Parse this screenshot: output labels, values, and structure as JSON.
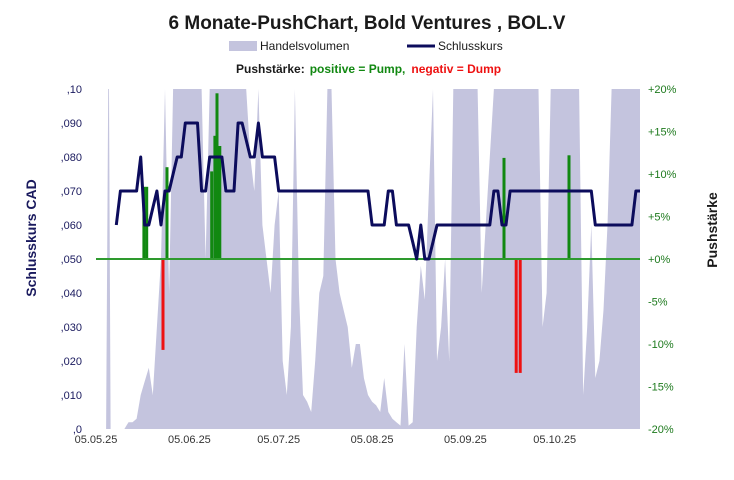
{
  "chart_data": {
    "type": "line",
    "title": "6 Monate-PushChart,  Bold Ventures , BOL.V",
    "legend": {
      "volume_label": "Handelsvolumen",
      "price_label": "Schlusskurs",
      "placement": "top"
    },
    "subtitle": {
      "prefix": "Pushstärke:",
      "positive": "positive = Pump,",
      "negative": "negativ = Dump"
    },
    "ylabel_left": "Schlusskurs CAD",
    "ylabel_right": "Pushstärke",
    "ylim_left": [
      0,
      0.1
    ],
    "yticks_left": [
      ",0",
      ",010",
      ",020",
      ",030",
      ",040",
      ",050",
      ",060",
      ",070",
      ",080",
      ",090",
      ",10"
    ],
    "ylim_right": [
      -20,
      20
    ],
    "yticks_right": [
      "-20%",
      "-15%",
      "-10%",
      "-5%",
      "+0%",
      "+5%",
      "+10%",
      "+15%",
      "+20%"
    ],
    "x_range": [
      0,
      134
    ],
    "xticks": [
      {
        "pos": 0,
        "label": "05.05.25"
      },
      {
        "pos": 23,
        "label": "05.06.25"
      },
      {
        "pos": 45,
        "label": "05.07.25"
      },
      {
        "pos": 68,
        "label": "05.08.25"
      },
      {
        "pos": 91,
        "label": "05.09.25"
      },
      {
        "pos": 113,
        "label": "05.10.25"
      }
    ],
    "colors": {
      "volume": "#c4c4de",
      "price": "#0c0c5c",
      "pump": "#118811",
      "dump": "#ee1111",
      "zero_line": "#2e9a2e",
      "left_axis_text": "#1a1a5e",
      "right_axis_text": "#1e7a1e"
    },
    "series": [
      {
        "name": "Schlusskurs",
        "x": [
          5,
          6,
          10,
          11,
          12,
          13,
          14,
          15,
          16,
          17,
          18,
          19,
          20,
          21,
          22,
          23,
          24,
          25,
          26,
          27,
          28,
          29,
          30,
          31,
          32,
          33,
          34,
          35,
          36,
          37,
          38,
          39,
          40,
          41,
          42,
          43,
          44,
          45,
          46,
          47,
          48,
          66,
          67,
          68,
          69,
          70,
          71,
          72,
          73,
          74,
          75,
          76,
          77,
          78,
          79,
          80,
          81,
          82,
          83,
          84,
          85,
          86,
          87,
          88,
          89,
          90,
          91,
          92,
          93,
          94,
          95,
          96,
          97,
          98,
          99,
          100,
          101,
          102,
          103,
          104,
          105,
          106,
          107,
          108,
          109,
          110,
          111,
          112,
          113,
          114,
          115,
          116,
          117,
          118,
          119,
          120,
          121,
          122,
          123,
          124,
          125,
          126,
          127,
          128,
          129,
          130,
          131,
          132,
          133,
          134
        ],
        "values": [
          0.06,
          0.07,
          0.07,
          0.08,
          0.06,
          0.06,
          0.065,
          0.07,
          0.06,
          0.07,
          0.07,
          0.075,
          0.08,
          0.08,
          0.09,
          0.09,
          0.09,
          0.09,
          0.07,
          0.07,
          0.08,
          0.08,
          0.08,
          0.08,
          0.07,
          0.07,
          0.07,
          0.09,
          0.09,
          0.085,
          0.08,
          0.08,
          0.09,
          0.08,
          0.08,
          0.08,
          0.08,
          0.07,
          0.07,
          0.07,
          0.07,
          0.07,
          0.07,
          0.06,
          0.06,
          0.06,
          0.06,
          0.07,
          0.07,
          0.06,
          0.06,
          0.06,
          0.06,
          0.055,
          0.05,
          0.06,
          0.05,
          0.05,
          0.055,
          0.06,
          0.06,
          0.06,
          0.06,
          0.06,
          0.06,
          0.06,
          0.06,
          0.06,
          0.06,
          0.06,
          0.06,
          0.06,
          0.06,
          0.07,
          0.07,
          0.06,
          0.06,
          0.07,
          0.07,
          0.07,
          0.07,
          0.07,
          0.07,
          0.07,
          0.07,
          0.07,
          0.07,
          0.07,
          0.07,
          0.07,
          0.07,
          0.07,
          0.07,
          0.07,
          0.07,
          0.07,
          0.07,
          0.07,
          0.06,
          0.06,
          0.06,
          0.06,
          0.06,
          0.06,
          0.06,
          0.06,
          0.06,
          0.06,
          0.07,
          0.07
        ]
      },
      {
        "name": "Handelsvolumen",
        "x": [
          0,
          1,
          2,
          2.5,
          3,
          3.2,
          3.6,
          4,
          5,
          6,
          7,
          8,
          9,
          10,
          11,
          12,
          13,
          14,
          15,
          16,
          17,
          18,
          19,
          20,
          21,
          22,
          23,
          24,
          25,
          26,
          27,
          28,
          29,
          30,
          31,
          32,
          33,
          34,
          35,
          36,
          37,
          38,
          39,
          40,
          41,
          42,
          43,
          44,
          45,
          46,
          47,
          48,
          49,
          50,
          51,
          52,
          53,
          54,
          55,
          56,
          57,
          58,
          59,
          60,
          61,
          62,
          63,
          64,
          65,
          66,
          67,
          68,
          69,
          70,
          71,
          72,
          73,
          74,
          75,
          76,
          77,
          78,
          79,
          80,
          81,
          82,
          83,
          84,
          85,
          86,
          87,
          88,
          89,
          90,
          91,
          92,
          93,
          94,
          95,
          96,
          97,
          98,
          99,
          100,
          101,
          102,
          103,
          104,
          105,
          106,
          107,
          108,
          109,
          110,
          111,
          112,
          113,
          114,
          115,
          116,
          117,
          118,
          119,
          120,
          121,
          122,
          123,
          124,
          125,
          126,
          127,
          128,
          129,
          130,
          131,
          132,
          133,
          134
        ],
        "values": [
          0,
          0,
          0,
          0,
          0.1,
          0.1,
          0,
          0,
          0,
          0,
          0,
          0.002,
          0.002,
          0.003,
          0.01,
          0.014,
          0.018,
          0.01,
          0.03,
          0.05,
          0.1,
          0.04,
          0.1,
          0.1,
          0.1,
          0.1,
          0.1,
          0.1,
          0.1,
          0.1,
          0.05,
          0.1,
          0.1,
          0.1,
          0.1,
          0.1,
          0.1,
          0.1,
          0.1,
          0.1,
          0.1,
          0.08,
          0.07,
          0.1,
          0.06,
          0.05,
          0.04,
          0.06,
          0.07,
          0.02,
          0.01,
          0.03,
          0.1,
          0.04,
          0.01,
          0.008,
          0.005,
          0.02,
          0.04,
          0.045,
          0.1,
          0.1,
          0.05,
          0.04,
          0.035,
          0.03,
          0.018,
          0.025,
          0.025,
          0.015,
          0.01,
          0.008,
          0.007,
          0.005,
          0.015,
          0.005,
          0.003,
          0.002,
          0.001,
          0.025,
          0.001,
          0.002,
          0.03,
          0.048,
          0.038,
          0.07,
          0.1,
          0.02,
          0.03,
          0.05,
          0.02,
          0.1,
          0.1,
          0.1,
          0.1,
          0.1,
          0.1,
          0.1,
          0.04,
          0.06,
          0.08,
          0.1,
          0.1,
          0.1,
          0.1,
          0.1,
          0.1,
          0.1,
          0.1,
          0.1,
          0.1,
          0.1,
          0.1,
          0.03,
          0.04,
          0.1,
          0.1,
          0.1,
          0.1,
          0.1,
          0.1,
          0.1,
          0.1,
          0.01,
          0.03,
          0.06,
          0.015,
          0.02,
          0.035,
          0.06,
          0.1,
          0.1,
          0.1,
          0.1,
          0.1,
          0.1,
          0.1,
          0.1
        ]
      },
      {
        "name": "Pushstärke",
        "x": [
          11.8,
          12.5,
          16.5,
          17.5,
          28.5,
          29.3,
          29.8,
          30.5,
          100.5,
          103.5,
          104.5,
          116.5
        ],
        "values": [
          8.5,
          8.5,
          -10.7,
          10.8,
          10.3,
          14.5,
          19.5,
          13.3,
          11.9,
          -13.4,
          -13.4,
          12.2
        ]
      }
    ]
  }
}
